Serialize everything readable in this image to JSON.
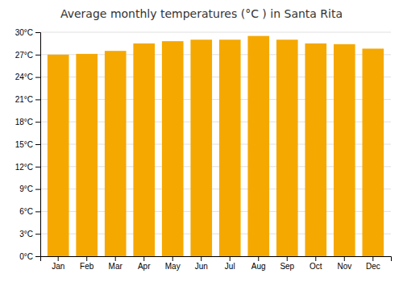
{
  "chart_data": {
    "type": "bar",
    "title": "Average monthly temperatures (°C ) in Santa Rita",
    "categories": [
      "Jan",
      "Feb",
      "Mar",
      "Apr",
      "May",
      "Jun",
      "Jul",
      "Aug",
      "Sep",
      "Oct",
      "Nov",
      "Dec"
    ],
    "values": [
      27.0,
      27.1,
      27.5,
      28.5,
      28.8,
      29.0,
      29.0,
      29.5,
      29.0,
      28.5,
      28.4,
      27.8
    ],
    "color": "#F5A800",
    "ylim": [
      0,
      30
    ],
    "yticks": [
      {
        "value": 0,
        "label": "0°C"
      },
      {
        "value": 3,
        "label": "3°C"
      },
      {
        "value": 6,
        "label": "6°C"
      },
      {
        "value": 9,
        "label": "9°C"
      },
      {
        "value": 12,
        "label": "12°C"
      },
      {
        "value": 15,
        "label": "15°C"
      },
      {
        "value": 18,
        "label": "18°C"
      },
      {
        "value": 21,
        "label": "21°C"
      },
      {
        "value": 24,
        "label": "24°C"
      },
      {
        "value": 27,
        "label": "27°C"
      },
      {
        "value": 30,
        "label": "30°C"
      }
    ],
    "grid": true
  }
}
